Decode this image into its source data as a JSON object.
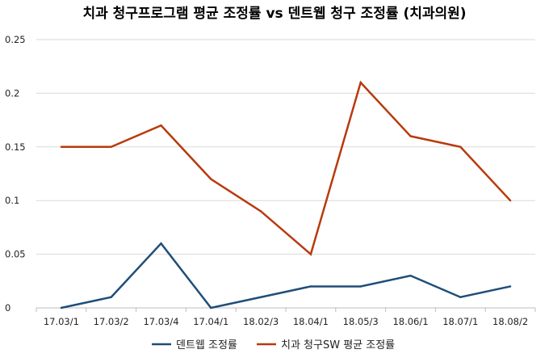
{
  "chart_data": {
    "type": "line",
    "title": "치과 청구프로그램 평균 조정률 vs 덴트웹 청구 조정률 (치과의원)",
    "xlabel": "",
    "ylabel": "",
    "categories": [
      "17.03/1",
      "17.03/2",
      "17.03/4",
      "17.04/1",
      "18.02/3",
      "18.04/1",
      "18.05/3",
      "18.06/1",
      "18.07/1",
      "18.08/2"
    ],
    "ylim": [
      0,
      0.25
    ],
    "yticks": [
      "0",
      "0.05",
      "0.1",
      "0.15",
      "0.2",
      "0.25"
    ],
    "grid": true,
    "legend_position": "bottom",
    "series": [
      {
        "name": "덴트웹 조정률",
        "color": "#1f4e79",
        "values": [
          0,
          0.01,
          0.06,
          0,
          0.01,
          0.02,
          0.02,
          0.03,
          0.01,
          0.02
        ]
      },
      {
        "name": "치과 청구SW 평균 조정률",
        "color": "#b83a0e",
        "values": [
          0.15,
          0.15,
          0.17,
          0.12,
          0.09,
          0.05,
          0.21,
          0.16,
          0.15,
          0.1
        ]
      }
    ]
  }
}
